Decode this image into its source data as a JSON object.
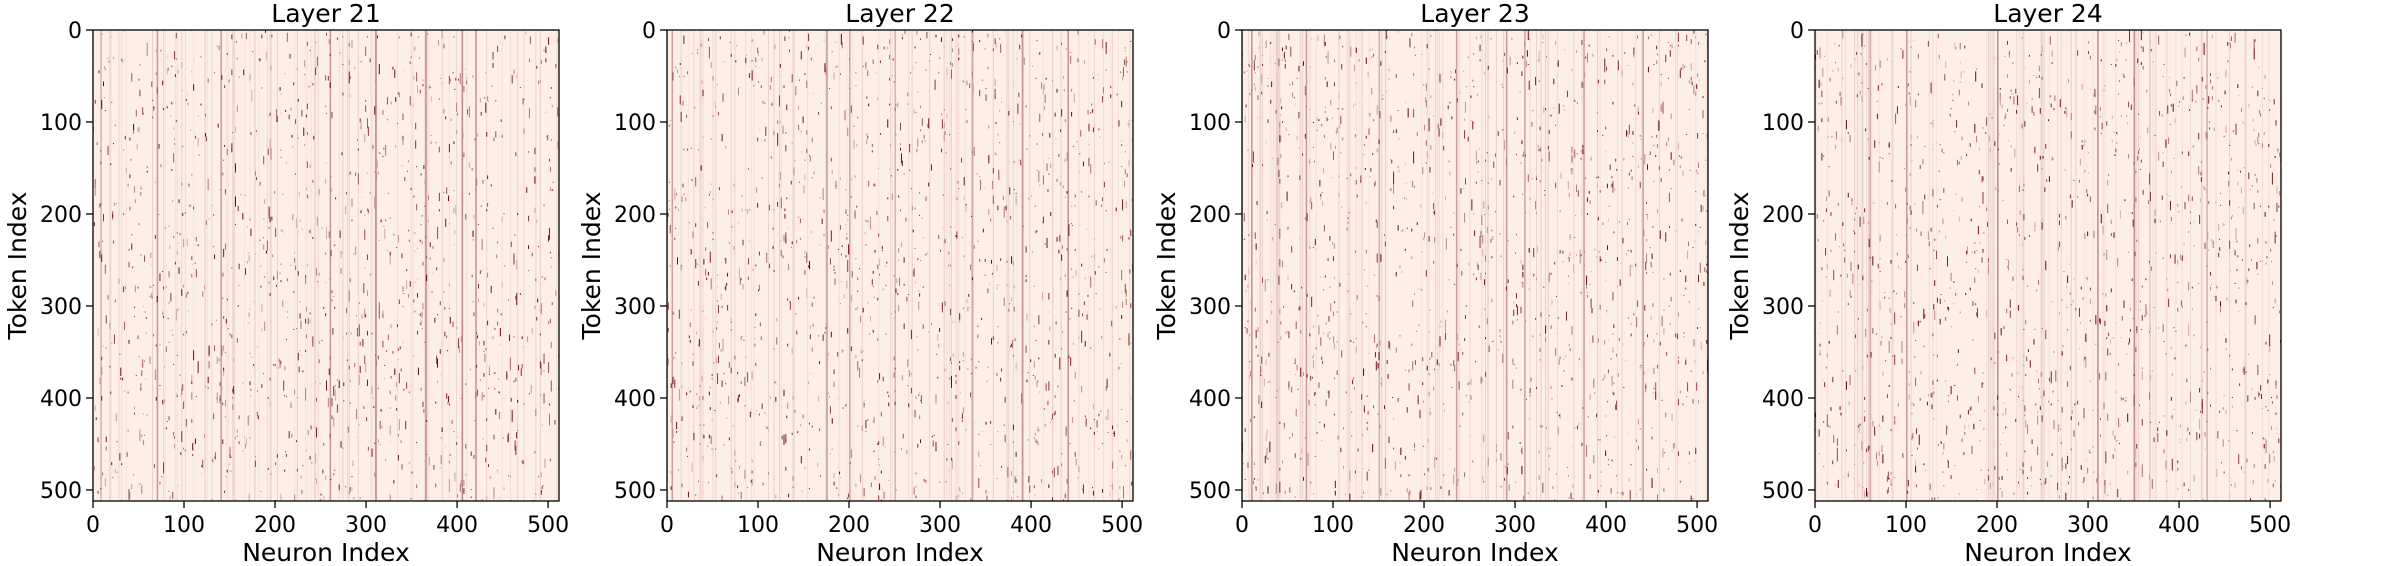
{
  "chart_data": [
    {
      "type": "heatmap",
      "title": "Layer 21",
      "xlabel": "Neuron Index",
      "ylabel": "Token Index",
      "xlim": [
        0,
        512
      ],
      "ylim": [
        512,
        0
      ],
      "x_ticks": [
        0,
        100,
        200,
        300,
        400,
        500
      ],
      "y_ticks": [
        0,
        100,
        200,
        300,
        400,
        500
      ],
      "colormap": [
        "#fdeee6",
        "#67000d"
      ],
      "background_color": "#fdeee6",
      "prominent_neuron_columns": [
        8,
        70,
        140,
        260,
        310,
        365,
        405,
        420
      ],
      "seed": 21
    },
    {
      "type": "heatmap",
      "title": "Layer 22",
      "xlabel": "Neuron Index",
      "ylabel": "Token Index",
      "xlim": [
        0,
        512
      ],
      "ylim": [
        512,
        0
      ],
      "x_ticks": [
        0,
        100,
        200,
        300,
        400,
        500
      ],
      "y_ticks": [
        0,
        100,
        200,
        300,
        400,
        500
      ],
      "colormap": [
        "#fdeee6",
        "#67000d"
      ],
      "background_color": "#fdeee6",
      "prominent_neuron_columns": [
        5,
        175,
        200,
        250,
        335,
        390,
        440
      ],
      "seed": 22
    },
    {
      "type": "heatmap",
      "title": "Layer 23",
      "xlabel": "Neuron Index",
      "ylabel": "Token Index",
      "xlim": [
        0,
        512
      ],
      "ylim": [
        512,
        0
      ],
      "x_ticks": [
        0,
        100,
        200,
        300,
        400,
        500
      ],
      "y_ticks": [
        0,
        100,
        200,
        300,
        400,
        500
      ],
      "colormap": [
        "#fdeee6",
        "#67000d"
      ],
      "background_color": "#fdeee6",
      "prominent_neuron_columns": [
        10,
        70,
        150,
        235,
        290,
        310,
        375,
        440
      ],
      "seed": 23
    },
    {
      "type": "heatmap",
      "title": "Layer 24",
      "xlabel": "Neuron Index",
      "ylabel": "Token Index",
      "xlim": [
        0,
        512
      ],
      "ylim": [
        512,
        0
      ],
      "x_ticks": [
        0,
        100,
        200,
        300,
        400,
        500
      ],
      "y_ticks": [
        0,
        100,
        200,
        300,
        400,
        500
      ],
      "colormap": [
        "#fdeee6",
        "#67000d"
      ],
      "background_color": "#fdeee6",
      "prominent_neuron_columns": [
        60,
        100,
        200,
        310,
        350,
        430
      ],
      "seed": 24
    }
  ]
}
